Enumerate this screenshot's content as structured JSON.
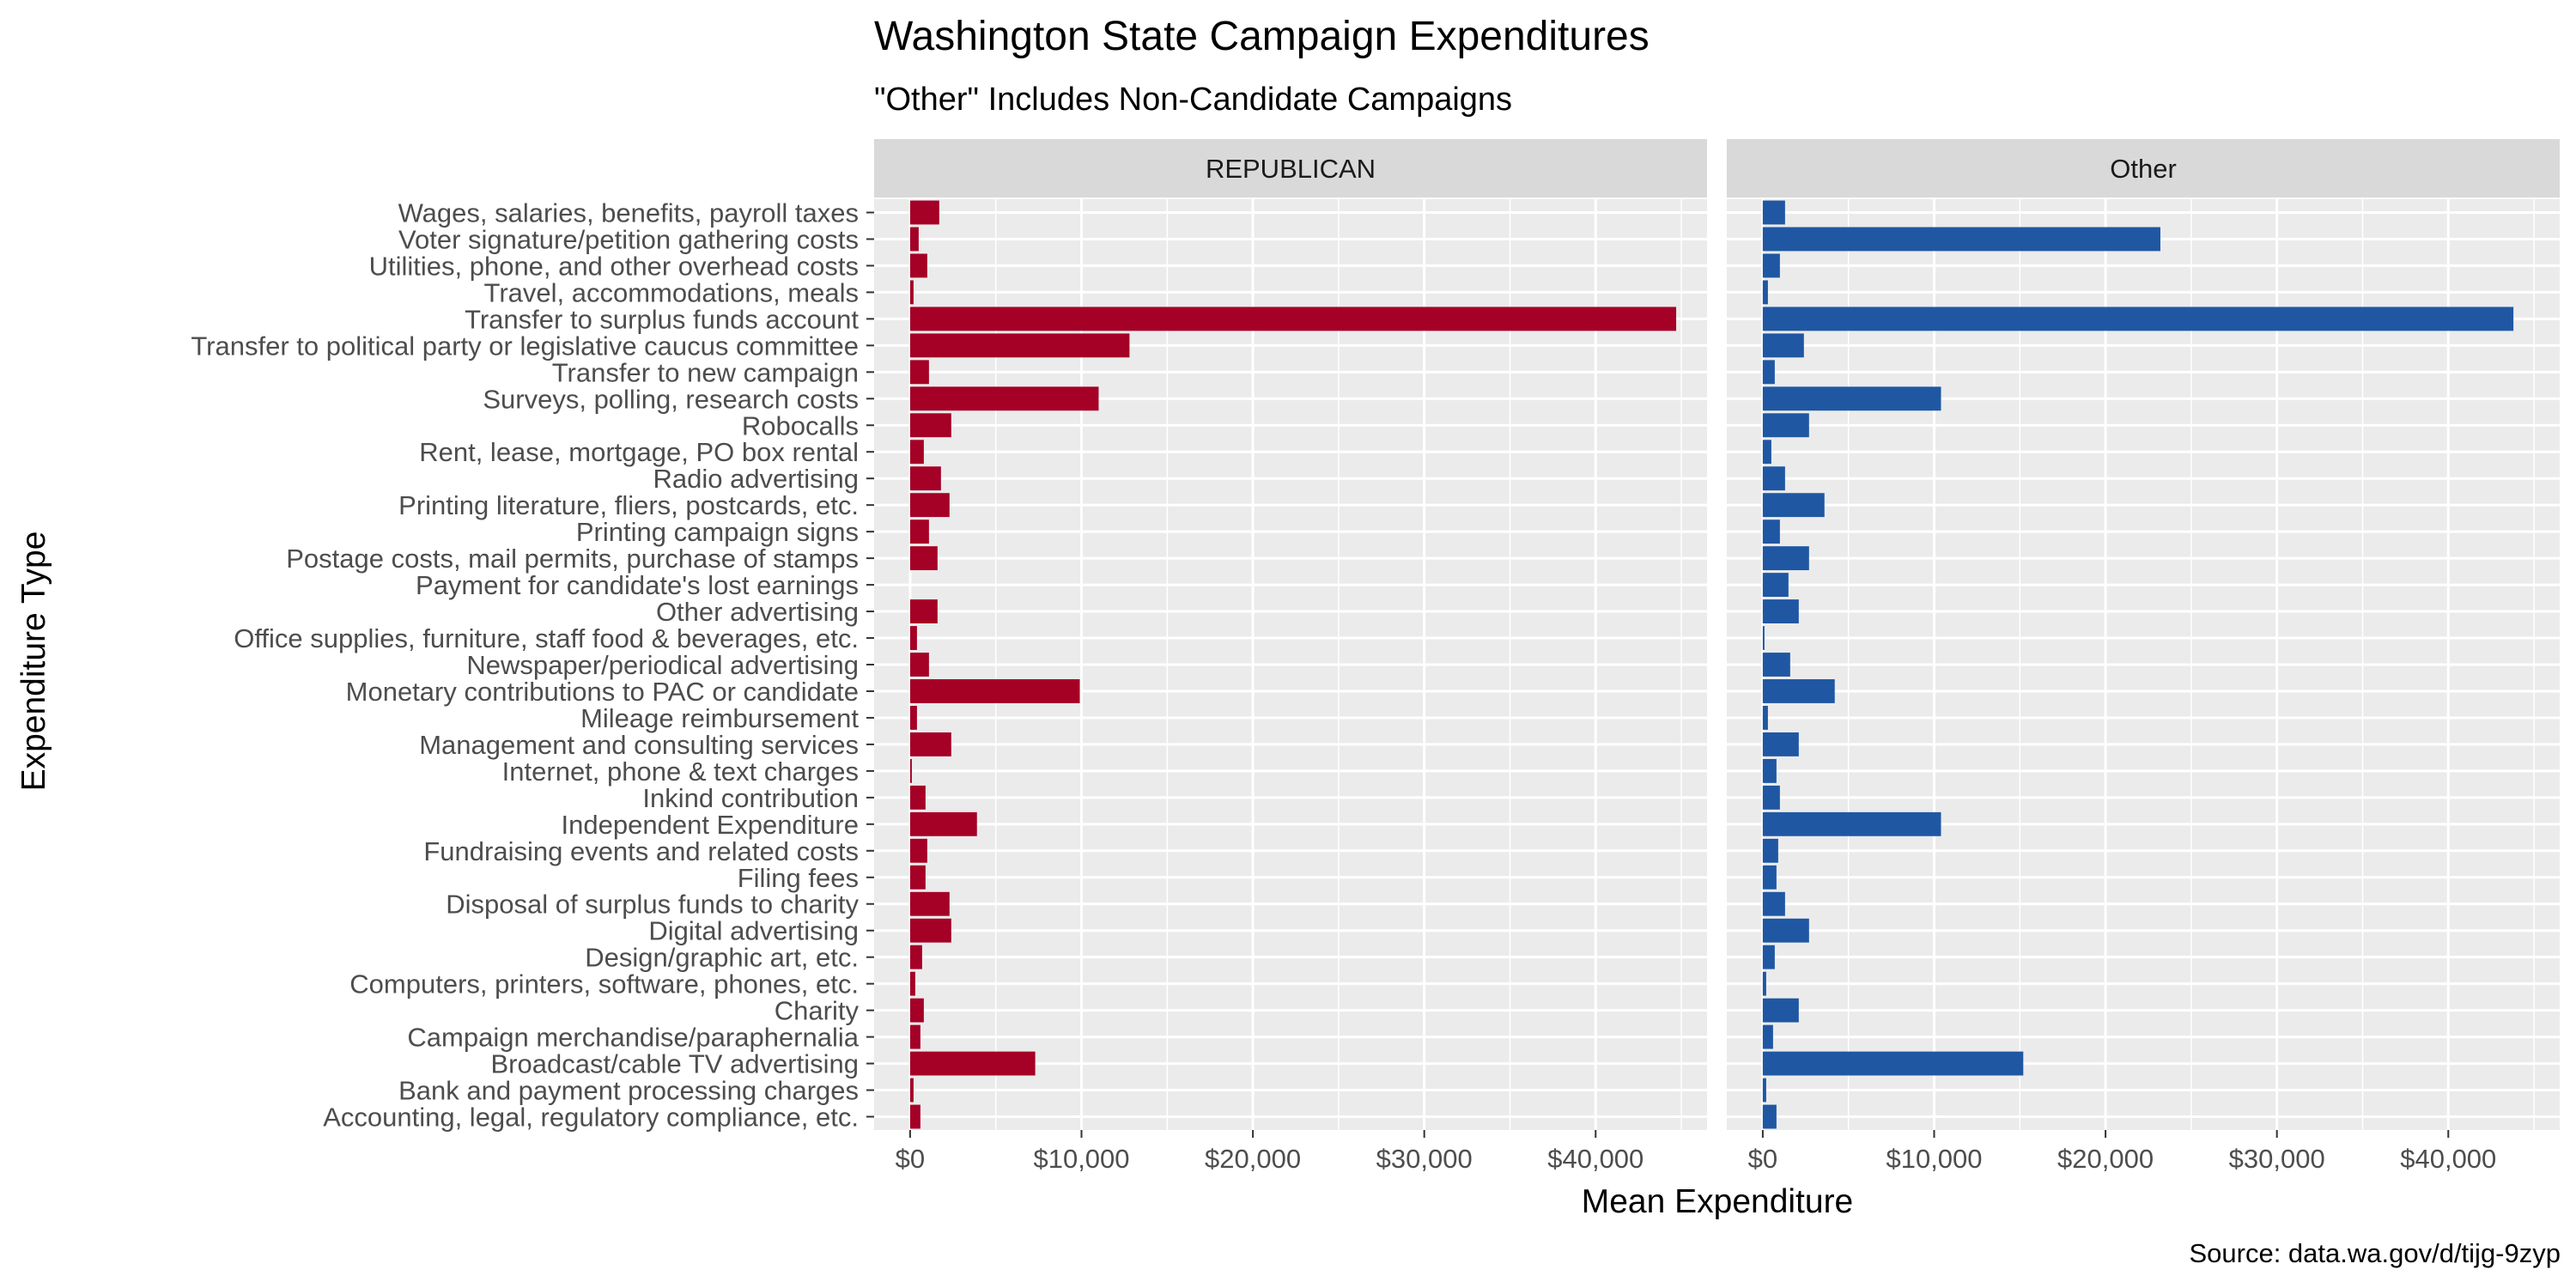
{
  "chart_data": {
    "type": "bar",
    "orientation": "horizontal",
    "title": "Washington State Campaign Expenditures",
    "subtitle": "\"Other\" Includes Non-Candidate Campaigns",
    "xlabel": "Mean Expenditure",
    "ylabel": "Expenditure Type",
    "caption": "Source: data.wa.gov/d/tijg-9zyp",
    "xlim": [
      -2100,
      46500
    ],
    "x_ticks": [
      0,
      10000,
      20000,
      30000,
      40000
    ],
    "x_tick_labels": [
      "$0",
      "$10,000",
      "$20,000",
      "$30,000",
      "$40,000"
    ],
    "grid": true,
    "categories": [
      "Wages, salaries, benefits, payroll taxes",
      "Voter signature/petition gathering costs",
      "Utilities, phone, and other overhead costs",
      "Travel, accommodations, meals",
      "Transfer to surplus funds account",
      "Transfer to political party or legislative caucus committee",
      "Transfer to new campaign",
      "Surveys, polling, research costs",
      "Robocalls",
      "Rent, lease, mortgage, PO box rental",
      "Radio advertising",
      "Printing literature, fliers, postcards, etc.",
      "Printing campaign signs",
      "Postage costs, mail permits, purchase of stamps",
      "Payment for candidate's lost earnings",
      "Other advertising",
      "Office supplies, furniture, staff food & beverages, etc.",
      "Newspaper/periodical advertising",
      "Monetary contributions to PAC or candidate",
      "Mileage reimbursement",
      "Management and consulting services",
      "Internet, phone & text charges",
      "Inkind contribution",
      "Independent Expenditure",
      "Fundraising events and related costs",
      "Filing fees",
      "Disposal of surplus funds to charity",
      "Digital advertising",
      "Design/graphic art, etc.",
      "Computers, printers, software, phones, etc.",
      "Charity",
      "Campaign merchandise/paraphernalia",
      "Broadcast/cable TV advertising",
      "Bank and payment processing charges",
      "Accounting, legal, regulatory compliance, etc."
    ],
    "series": [
      {
        "name": "REPUBLICAN",
        "color": "#a50026",
        "values": [
          1700,
          500,
          1000,
          200,
          44700,
          12800,
          1100,
          11000,
          2400,
          800,
          1800,
          2300,
          1100,
          1600,
          0,
          1600,
          400,
          1100,
          9900,
          400,
          2400,
          100,
          900,
          3900,
          1000,
          900,
          2300,
          2400,
          700,
          300,
          800,
          600,
          7300,
          200,
          600
        ]
      },
      {
        "name": "Other",
        "color": "#1f57a3",
        "values": [
          1300,
          23200,
          1000,
          300,
          43800,
          2400,
          700,
          10400,
          2700,
          500,
          1300,
          3600,
          1000,
          2700,
          1500,
          2100,
          100,
          1600,
          4200,
          300,
          2100,
          800,
          1000,
          10400,
          900,
          800,
          1300,
          2700,
          700,
          200,
          2100,
          600,
          15200,
          200,
          800
        ]
      }
    ]
  }
}
